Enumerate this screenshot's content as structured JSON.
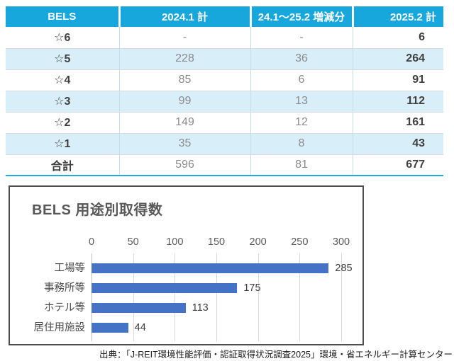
{
  "caption": "出典：「J-REIT環境性能評価・認証取得状況調査2025」環境・省エネルギー計算センター",
  "colors": {
    "header_bg": "#17a7dd",
    "stripe": "#d8effa",
    "table_accent": "#2aa7da",
    "bar_blue": "#4472c4",
    "grid_line": "#d9d9d9",
    "dark_text": "#3f3f3f",
    "gray_text": "#8b8b8b",
    "title_gray": "#595959"
  },
  "chart_data": [
    {
      "type": "table",
      "title": "BELS",
      "columns": [
        "BELS",
        "2024.1 計",
        "24.1～25.2 増減分",
        "2025.2 計"
      ],
      "rows": [
        [
          "☆6",
          "-",
          "-",
          "6"
        ],
        [
          "☆5",
          "228",
          "36",
          "264"
        ],
        [
          "☆4",
          "85",
          "6",
          "91"
        ],
        [
          "☆3",
          "99",
          "13",
          "112"
        ],
        [
          "☆2",
          "149",
          "12",
          "161"
        ],
        [
          "☆1",
          "35",
          "8",
          "43"
        ],
        [
          "合計",
          "596",
          "81",
          "677"
        ]
      ]
    },
    {
      "type": "bar",
      "orientation": "horizontal",
      "title": "BELS 用途別取得数",
      "categories": [
        "工場等",
        "事務所等",
        "ホテル等",
        "居住用施設"
      ],
      "values": [
        285,
        175,
        113,
        44
      ],
      "xlabel": "",
      "ylabel": "",
      "xlim": [
        0,
        300
      ],
      "ticks": [
        0,
        50,
        100,
        150,
        200,
        250,
        300
      ],
      "axis_position": "top",
      "grid": true,
      "value_labels": true,
      "legend": "none"
    }
  ]
}
